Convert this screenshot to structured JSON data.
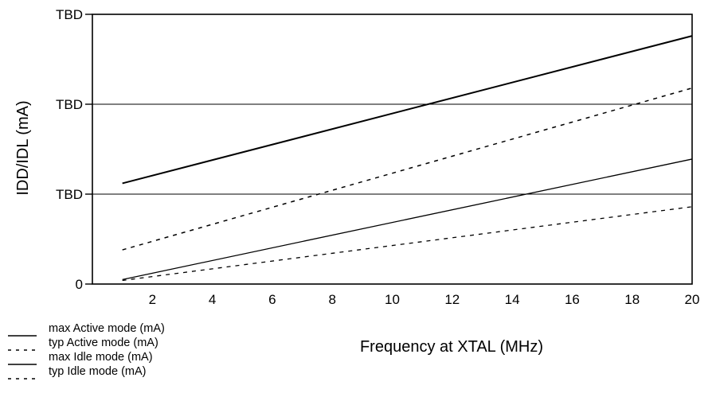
{
  "chart_data": {
    "type": "line",
    "xlabel": "Frequency at XTAL (MHz)",
    "ylabel": "IDD/IDL (mA)",
    "xlim": [
      0,
      20
    ],
    "ylim": [
      0,
      3
    ],
    "x_ticks": [
      2,
      4,
      6,
      8,
      10,
      12,
      14,
      16,
      18,
      20
    ],
    "y_ticks": [
      {
        "value": 0,
        "label": "0"
      },
      {
        "value": 1,
        "label": "TBD"
      },
      {
        "value": 2,
        "label": "TBD"
      },
      {
        "value": 3,
        "label": "TBD"
      }
    ],
    "grid": {
      "horizontal_at": [
        1,
        2
      ]
    },
    "legend_position": "bottom-left",
    "series": [
      {
        "name": "max Active mode (mA)",
        "style": "solid",
        "stroke_width": 2,
        "x": [
          1,
          20
        ],
        "y": [
          1.12,
          2.76
        ]
      },
      {
        "name": "typ Active mode (mA)",
        "style": "dashed",
        "stroke_width": 1.5,
        "x": [
          1,
          20
        ],
        "y": [
          0.38,
          2.18
        ]
      },
      {
        "name": "max Idle mode (mA)",
        "style": "solid",
        "stroke_width": 1.3,
        "x": [
          1,
          20
        ],
        "y": [
          0.05,
          1.39
        ]
      },
      {
        "name": "typ Idle mode (mA)",
        "style": "dashed",
        "stroke_width": 1.3,
        "x": [
          1,
          20
        ],
        "y": [
          0.04,
          0.86
        ]
      }
    ]
  }
}
